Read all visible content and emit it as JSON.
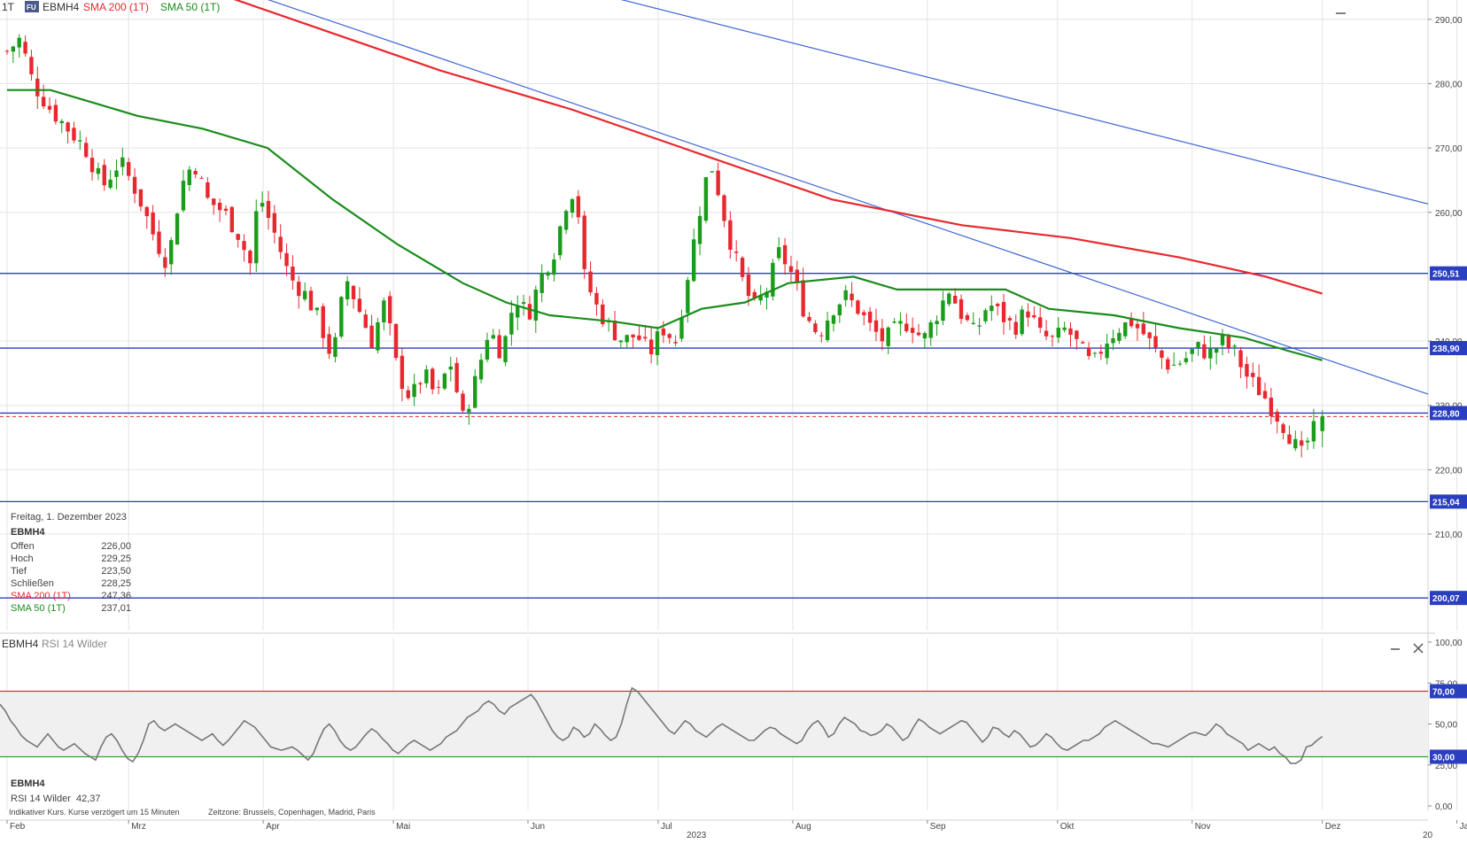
{
  "header": {
    "interval": "1T",
    "badge": "FU",
    "symbol": "EBMH4",
    "sma200_label": "SMA 200 (1T)",
    "sma50_label": "SMA 50 (1T)"
  },
  "colors": {
    "up": "#1a9c1a",
    "down": "#e8282e",
    "sma200": "#e8282e",
    "sma50": "#1a8c1a",
    "hline": "#2a3fbf",
    "trendline": "#3f66d4",
    "rsi": "#777777",
    "rsi_upper": "#d83434",
    "rsi_lower": "#2aa82a",
    "rsi_band": "#f0f0f0",
    "grid": "#e4e4e4",
    "tag": "#2a3fbf",
    "close_line": "#e8282e"
  },
  "info_box": {
    "date": "Freitag, 1. Dezember 2023",
    "symbol": "EBMH4",
    "rows": [
      {
        "label": "Offen",
        "value": "226,00"
      },
      {
        "label": "Hoch",
        "value": "229,25"
      },
      {
        "label": "Tief",
        "value": "223,50"
      },
      {
        "label": "Schließen",
        "value": "228,25"
      },
      {
        "label": "SMA 200 (1T)",
        "value": "247,36"
      },
      {
        "label": "SMA 50 (1T)",
        "value": "237,01"
      }
    ]
  },
  "rsi_panel": {
    "title_symbol": "EBMH4",
    "title_indicator": "RSI 14 Wilder",
    "info_symbol": "EBMH4",
    "info_label": "RSI 14 Wilder",
    "info_value": "42,37"
  },
  "footer": {
    "disclaimer": "Indikativer Kurs. Kurse verzögert um 15 Minuten",
    "timezone": "Zeitzone: Brussels, Copenhagen, Madrid, Paris",
    "year": "2023",
    "year_next_fragment": "20"
  },
  "icons": {
    "minimize": "minus-icon",
    "close": "close-icon"
  },
  "chart_data": [
    {
      "type": "candlestick",
      "symbol": "EBMH4",
      "y_axis_ticks": [
        "290,00",
        "280,00",
        "270,00",
        "260,00",
        "240,00",
        "230,00",
        "220,00",
        "210,00"
      ],
      "ylim": [
        195,
        293
      ],
      "x_ticks": [
        {
          "label": "Feb",
          "day": 0
        },
        {
          "label": "Mrz",
          "day": 28
        },
        {
          "label": "Apr",
          "day": 59
        },
        {
          "label": "Mai",
          "day": 89
        },
        {
          "label": "Jun",
          "day": 120
        },
        {
          "label": "Jul",
          "day": 150
        },
        {
          "label": "Aug",
          "day": 181
        },
        {
          "label": "Sep",
          "day": 212
        },
        {
          "label": "Okt",
          "day": 242
        },
        {
          "label": "Nov",
          "day": 273
        },
        {
          "label": "Dez",
          "day": 303
        },
        {
          "label": "Jan",
          "day": 334
        }
      ],
      "last_candle": {
        "date": "2023-12-01",
        "open": 226.0,
        "high": 229.25,
        "low": 223.5,
        "close": 228.25
      },
      "close_line": 228.25,
      "price_tags": [
        {
          "value": 250.51,
          "label": "250,51"
        },
        {
          "value": 238.9,
          "label": "238,90"
        },
        {
          "value": 228.8,
          "label": "228,80"
        },
        {
          "value": 215.04,
          "label": "215,04"
        },
        {
          "value": 200.07,
          "label": "200,07"
        }
      ],
      "trendlines": [
        {
          "from": {
            "day": 56,
            "price": 294
          },
          "to": {
            "day": 335,
            "price": 230
          }
        },
        {
          "from": {
            "day": 136,
            "price": 294
          },
          "to": {
            "day": 335,
            "price": 260
          }
        }
      ],
      "close_path": [
        {
          "day": 0,
          "price": 285
        },
        {
          "day": 3,
          "price": 287
        },
        {
          "day": 6,
          "price": 280
        },
        {
          "day": 10,
          "price": 276
        },
        {
          "day": 14,
          "price": 273
        },
        {
          "day": 18,
          "price": 270
        },
        {
          "day": 22,
          "price": 264
        },
        {
          "day": 26,
          "price": 268
        },
        {
          "day": 30,
          "price": 263
        },
        {
          "day": 34,
          "price": 256
        },
        {
          "day": 37,
          "price": 252
        },
        {
          "day": 40,
          "price": 264
        },
        {
          "day": 43,
          "price": 268
        },
        {
          "day": 46,
          "price": 262
        },
        {
          "day": 50,
          "price": 260
        },
        {
          "day": 53,
          "price": 257
        },
        {
          "day": 56,
          "price": 252
        },
        {
          "day": 58,
          "price": 263
        },
        {
          "day": 62,
          "price": 256
        },
        {
          "day": 65,
          "price": 250
        },
        {
          "day": 69,
          "price": 247
        },
        {
          "day": 72,
          "price": 243
        },
        {
          "day": 75,
          "price": 237
        },
        {
          "day": 78,
          "price": 250
        },
        {
          "day": 81,
          "price": 245
        },
        {
          "day": 84,
          "price": 240
        },
        {
          "day": 87,
          "price": 246
        },
        {
          "day": 90,
          "price": 235
        },
        {
          "day": 93,
          "price": 231
        },
        {
          "day": 96,
          "price": 235
        },
        {
          "day": 99,
          "price": 231
        },
        {
          "day": 102,
          "price": 237
        },
        {
          "day": 105,
          "price": 228
        },
        {
          "day": 108,
          "price": 234
        },
        {
          "day": 111,
          "price": 242
        },
        {
          "day": 114,
          "price": 238
        },
        {
          "day": 117,
          "price": 247
        },
        {
          "day": 120,
          "price": 244
        },
        {
          "day": 123,
          "price": 250
        },
        {
          "day": 126,
          "price": 254
        },
        {
          "day": 129,
          "price": 262
        },
        {
          "day": 131,
          "price": 264
        },
        {
          "day": 133,
          "price": 250
        },
        {
          "day": 136,
          "price": 245
        },
        {
          "day": 139,
          "price": 242
        },
        {
          "day": 142,
          "price": 240
        },
        {
          "day": 145,
          "price": 241
        },
        {
          "day": 148,
          "price": 238
        },
        {
          "day": 151,
          "price": 242
        },
        {
          "day": 154,
          "price": 240
        },
        {
          "day": 157,
          "price": 251
        },
        {
          "day": 160,
          "price": 262
        },
        {
          "day": 162,
          "price": 268
        },
        {
          "day": 164,
          "price": 263
        },
        {
          "day": 166,
          "price": 257
        },
        {
          "day": 169,
          "price": 250
        },
        {
          "day": 172,
          "price": 245
        },
        {
          "day": 175,
          "price": 248
        },
        {
          "day": 178,
          "price": 254
        },
        {
          "day": 181,
          "price": 250
        },
        {
          "day": 184,
          "price": 244
        },
        {
          "day": 187,
          "price": 241
        },
        {
          "day": 190,
          "price": 245
        },
        {
          "day": 193,
          "price": 247
        },
        {
          "day": 196,
          "price": 245
        },
        {
          "day": 199,
          "price": 242
        },
        {
          "day": 202,
          "price": 240
        },
        {
          "day": 205,
          "price": 242
        },
        {
          "day": 208,
          "price": 243
        },
        {
          "day": 211,
          "price": 240
        },
        {
          "day": 214,
          "price": 244
        },
        {
          "day": 217,
          "price": 248
        },
        {
          "day": 220,
          "price": 244
        },
        {
          "day": 223,
          "price": 241
        },
        {
          "day": 226,
          "price": 246
        },
        {
          "day": 229,
          "price": 244
        },
        {
          "day": 232,
          "price": 242
        },
        {
          "day": 235,
          "price": 245
        },
        {
          "day": 238,
          "price": 241
        },
        {
          "day": 241,
          "price": 240
        },
        {
          "day": 244,
          "price": 242
        },
        {
          "day": 247,
          "price": 239
        },
        {
          "day": 250,
          "price": 236
        },
        {
          "day": 253,
          "price": 240
        },
        {
          "day": 256,
          "price": 242
        },
        {
          "day": 259,
          "price": 243
        },
        {
          "day": 262,
          "price": 241
        },
        {
          "day": 265,
          "price": 238
        },
        {
          "day": 268,
          "price": 236
        },
        {
          "day": 271,
          "price": 237
        },
        {
          "day": 274,
          "price": 239
        },
        {
          "day": 277,
          "price": 238
        },
        {
          "day": 280,
          "price": 240
        },
        {
          "day": 283,
          "price": 238
        },
        {
          "day": 286,
          "price": 234
        },
        {
          "day": 289,
          "price": 232
        },
        {
          "day": 292,
          "price": 229
        },
        {
          "day": 295,
          "price": 226
        },
        {
          "day": 298,
          "price": 222
        },
        {
          "day": 300,
          "price": 225
        },
        {
          "day": 303,
          "price": 228.25
        }
      ],
      "sma200": [
        {
          "day": 0,
          "price": 300
        },
        {
          "day": 40,
          "price": 296
        },
        {
          "day": 70,
          "price": 289
        },
        {
          "day": 100,
          "price": 282
        },
        {
          "day": 130,
          "price": 276
        },
        {
          "day": 160,
          "price": 269
        },
        {
          "day": 190,
          "price": 262
        },
        {
          "day": 220,
          "price": 258
        },
        {
          "day": 245,
          "price": 256
        },
        {
          "day": 270,
          "price": 253
        },
        {
          "day": 290,
          "price": 250
        },
        {
          "day": 303,
          "price": 247.36
        }
      ],
      "sma50": [
        {
          "day": 0,
          "price": 279
        },
        {
          "day": 10,
          "price": 279
        },
        {
          "day": 20,
          "price": 277
        },
        {
          "day": 30,
          "price": 275
        },
        {
          "day": 45,
          "price": 273
        },
        {
          "day": 60,
          "price": 270
        },
        {
          "day": 75,
          "price": 262
        },
        {
          "day": 90,
          "price": 255
        },
        {
          "day": 105,
          "price": 249
        },
        {
          "day": 115,
          "price": 246
        },
        {
          "day": 125,
          "price": 244
        },
        {
          "day": 140,
          "price": 243
        },
        {
          "day": 150,
          "price": 242
        },
        {
          "day": 160,
          "price": 245
        },
        {
          "day": 170,
          "price": 246
        },
        {
          "day": 180,
          "price": 249
        },
        {
          "day": 195,
          "price": 250
        },
        {
          "day": 205,
          "price": 248
        },
        {
          "day": 220,
          "price": 248
        },
        {
          "day": 230,
          "price": 248
        },
        {
          "day": 240,
          "price": 245
        },
        {
          "day": 255,
          "price": 244
        },
        {
          "day": 270,
          "price": 242
        },
        {
          "day": 285,
          "price": 240.5
        },
        {
          "day": 295,
          "price": 238.5
        },
        {
          "day": 303,
          "price": 237.01
        }
      ]
    },
    {
      "type": "line",
      "name": "RSI 14 Wilder",
      "y_axis_ticks": [
        "100,00",
        "75,00",
        "50,00",
        "25,00",
        "0,00"
      ],
      "ylim": [
        0,
        100
      ],
      "levels": [
        {
          "value": 70,
          "label": "70,00"
        },
        {
          "value": 30,
          "label": "30,00"
        }
      ],
      "last_value": 42.37,
      "values": [
        62,
        58,
        52,
        48,
        43,
        40,
        38,
        36,
        40,
        44,
        40,
        36,
        34,
        36,
        38,
        35,
        32,
        30,
        28,
        36,
        42,
        44,
        40,
        34,
        29,
        27,
        32,
        40,
        50,
        52,
        48,
        46,
        48,
        50,
        48,
        46,
        44,
        42,
        40,
        42,
        44,
        40,
        37,
        40,
        44,
        48,
        52,
        50,
        48,
        44,
        40,
        36,
        35,
        34,
        35,
        36,
        34,
        31,
        28,
        32,
        40,
        47,
        50,
        46,
        40,
        36,
        34,
        36,
        40,
        44,
        47,
        45,
        41,
        38,
        34,
        32,
        35,
        38,
        40,
        38,
        36,
        34,
        36,
        38,
        42,
        44,
        46,
        50,
        54,
        56,
        58,
        62,
        64,
        62,
        58,
        56,
        60,
        62,
        64,
        66,
        68,
        64,
        58,
        52,
        46,
        42,
        40,
        42,
        48,
        46,
        42,
        44,
        50,
        47,
        43,
        40,
        42,
        50,
        62,
        72,
        70,
        66,
        62,
        58,
        54,
        50,
        46,
        44,
        48,
        52,
        50,
        46,
        44,
        42,
        45,
        48,
        50,
        48,
        46,
        44,
        42,
        40,
        40,
        43,
        46,
        48,
        47,
        44,
        42,
        40,
        38,
        40,
        46,
        50,
        52,
        48,
        42,
        44,
        50,
        54,
        52,
        50,
        46,
        45,
        43,
        44,
        46,
        50,
        48,
        44,
        40,
        42,
        48,
        53,
        51,
        48,
        46,
        44,
        46,
        48,
        50,
        52,
        51,
        47,
        43,
        39,
        42,
        48,
        47,
        44,
        42,
        46,
        44,
        40,
        36,
        37,
        40,
        44,
        42,
        38,
        35,
        34,
        36,
        38,
        40,
        40,
        42,
        44,
        48,
        50,
        52,
        50,
        48,
        46,
        44,
        42,
        40,
        38,
        38,
        37,
        36,
        38,
        40,
        42,
        44,
        45,
        44,
        43,
        46,
        50,
        48,
        44,
        42,
        40,
        38,
        34,
        36,
        38,
        36,
        34,
        36,
        32,
        30,
        26,
        26,
        28,
        36,
        37,
        40,
        42.37
      ]
    }
  ]
}
